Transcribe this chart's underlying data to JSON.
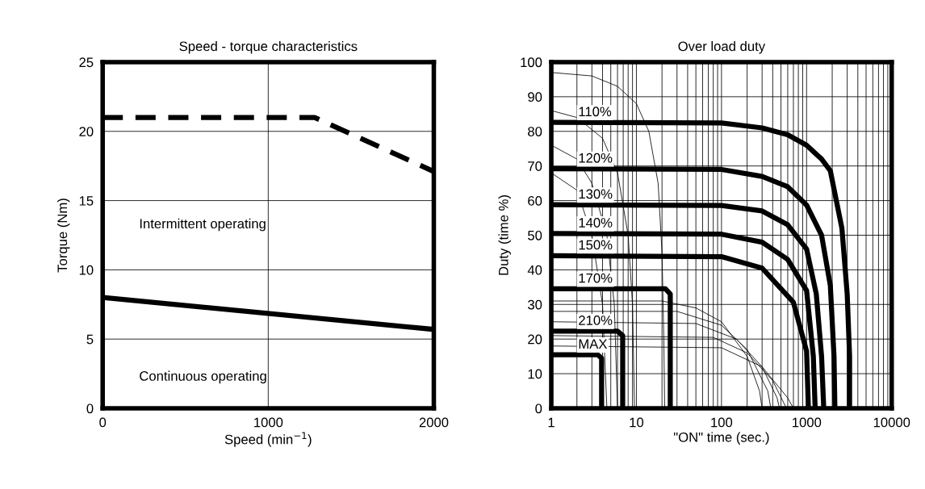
{
  "chart_data": [
    {
      "type": "line",
      "title": "Speed - torque characteristics",
      "xlabel": "Speed (min$^{−1}$)",
      "ylabel": "Torque (Nm)",
      "xlim": [
        0,
        2000
      ],
      "xticks": [
        0,
        1000,
        2000
      ],
      "ylim": [
        0,
        25
      ],
      "yticks": [
        0,
        5,
        10,
        15,
        20,
        25
      ],
      "grid": true,
      "annotations": [
        "Intermittent operating",
        "Continuous operating"
      ],
      "series": [
        {
          "color": "#000000",
          "line_style": "dashed",
          "x": [
            0,
            1280,
            2000
          ],
          "values": [
            21,
            21,
            17.1
          ]
        },
        {
          "color": "#000000",
          "line_style": "solid",
          "x": [
            0,
            2000
          ],
          "values": [
            8,
            5.7
          ]
        }
      ]
    },
    {
      "type": "line",
      "title": "Over load duty",
      "xlabel": "\"ON\" time (sec.)",
      "ylabel": "Duty (time %)",
      "log": "x",
      "xlim": [
        1,
        10000
      ],
      "xticks": [
        1,
        10,
        100,
        1000,
        10000
      ],
      "ylim": [
        0,
        100
      ],
      "yticks": [
        0,
        10,
        20,
        30,
        40,
        50,
        60,
        70,
        80,
        90,
        100
      ],
      "grid": true,
      "series": [
        {
          "name": "110%",
          "color": "#000000",
          "x": [
            1,
            100,
            300,
            600,
            1000,
            1500,
            1900,
            2600,
            3000,
            3200,
            3200
          ],
          "values": [
            82.6,
            82.4,
            81,
            79,
            76,
            72,
            68.6,
            52,
            33,
            15,
            0
          ]
        },
        {
          "name": "120%",
          "color": "#000000",
          "x": [
            1,
            100,
            300,
            600,
            1000,
            1500,
            1900,
            2100,
            2150
          ],
          "values": [
            69.2,
            69,
            67,
            64,
            58.7,
            50,
            35.5,
            15,
            0
          ]
        },
        {
          "name": "130%",
          "color": "#000000",
          "x": [
            1,
            100,
            300,
            600,
            1000,
            1300,
            1500,
            1590
          ],
          "values": [
            58.8,
            58.6,
            57,
            53,
            46,
            33,
            15,
            0
          ]
        },
        {
          "name": "140%",
          "color": "#000000",
          "x": [
            1,
            100,
            300,
            600,
            1000,
            1200,
            1260
          ],
          "values": [
            50.5,
            50.3,
            48,
            43,
            34,
            15,
            0
          ]
        },
        {
          "name": "150%",
          "color": "#000000",
          "x": [
            1,
            100,
            300,
            700,
            1000,
            1050
          ],
          "values": [
            44.1,
            43.8,
            40.5,
            30.6,
            16.5,
            0
          ]
        },
        {
          "name": "170%",
          "color": "#000000",
          "x": [
            1,
            22,
            25,
            25
          ],
          "values": [
            34.5,
            34.5,
            33,
            0
          ]
        },
        {
          "name": "210%",
          "color": "#000000",
          "x": [
            1,
            6,
            6.9,
            6.9
          ],
          "values": [
            22.3,
            22.3,
            21,
            0
          ]
        },
        {
          "name": "MAX",
          "color": "#000000",
          "x": [
            1,
            3.5,
            3.9,
            3.9
          ],
          "values": [
            15.5,
            15.5,
            14.5,
            0
          ]
        },
        {
          "color": "#000000",
          "x": [
            1,
            3,
            6,
            10,
            14,
            18,
            20,
            21,
            21.5
          ],
          "values": [
            97,
            96,
            93,
            88,
            80,
            65,
            45,
            20,
            0
          ]
        },
        {
          "color": "#000000",
          "x": [
            1,
            2,
            4,
            6,
            8,
            9,
            9.5
          ],
          "values": [
            86,
            84,
            78,
            68,
            50,
            30,
            0
          ]
        },
        {
          "color": "#000000",
          "x": [
            1,
            2,
            3,
            4.5,
            5.5,
            6
          ],
          "values": [
            76,
            72,
            65,
            50,
            30,
            0
          ]
        },
        {
          "color": "#000000",
          "x": [
            1,
            2,
            3,
            4,
            4.5
          ],
          "values": [
            68,
            63,
            50,
            30,
            0
          ]
        },
        {
          "color": "#000000",
          "x": [
            1,
            20,
            50,
            100,
            200,
            280,
            300
          ],
          "values": [
            31,
            31,
            29,
            25,
            15,
            5,
            0
          ]
        },
        {
          "color": "#000000",
          "x": [
            1,
            30,
            100,
            200,
            350,
            380
          ],
          "values": [
            28,
            28,
            24,
            17,
            5,
            0
          ]
        },
        {
          "color": "#000000",
          "x": [
            1,
            50,
            150,
            300,
            450,
            480
          ],
          "values": [
            25,
            24.5,
            20,
            12,
            3,
            0
          ]
        },
        {
          "color": "#000000",
          "x": [
            1,
            80,
            200,
            400,
            580
          ],
          "values": [
            21,
            20.5,
            16,
            8,
            0
          ]
        },
        {
          "color": "#000000",
          "x": [
            1,
            100,
            300,
            600,
            700
          ],
          "values": [
            18,
            17.5,
            12,
            3,
            0
          ]
        }
      ]
    }
  ]
}
